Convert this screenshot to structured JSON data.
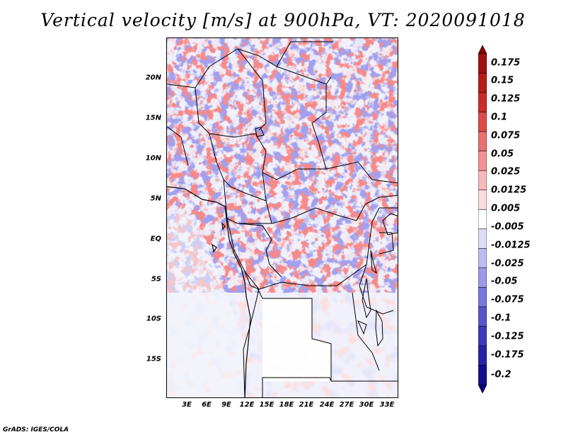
{
  "title": "Vertical velocity [m/s] at 900hPa, VT: 2020091018",
  "credit": "GrADS: IGES/COLA",
  "map": {
    "lat_ticks": [
      "20N",
      "15N",
      "10N",
      "5N",
      "EQ",
      "5S",
      "10S",
      "15S"
    ],
    "lon_ticks": [
      "3E",
      "6E",
      "9E",
      "12E",
      "15E",
      "18E",
      "21E",
      "24E",
      "27E",
      "30E",
      "33E"
    ]
  },
  "colorbar": {
    "labels": [
      "0.175",
      "0.15",
      "0.125",
      "0.1",
      "0.075",
      "0.05",
      "0.025",
      "0.0125",
      "0.005",
      "-0.005",
      "-0.0125",
      "-0.025",
      "-0.05",
      "-0.075",
      "-0.1",
      "-0.125",
      "-0.175",
      "-0.2"
    ],
    "colors": [
      "#8b0000",
      "#a01010",
      "#b81a1a",
      "#cc2a2a",
      "#dd4a4a",
      "#e87070",
      "#f09494",
      "#f7baba",
      "#fcdcdc",
      "#ffffff",
      "#dcdcf6",
      "#bcbcf0",
      "#9a9ae8",
      "#7878dc",
      "#5656cc",
      "#3a3aba",
      "#2424a4",
      "#10108c",
      "#00007a"
    ]
  }
}
